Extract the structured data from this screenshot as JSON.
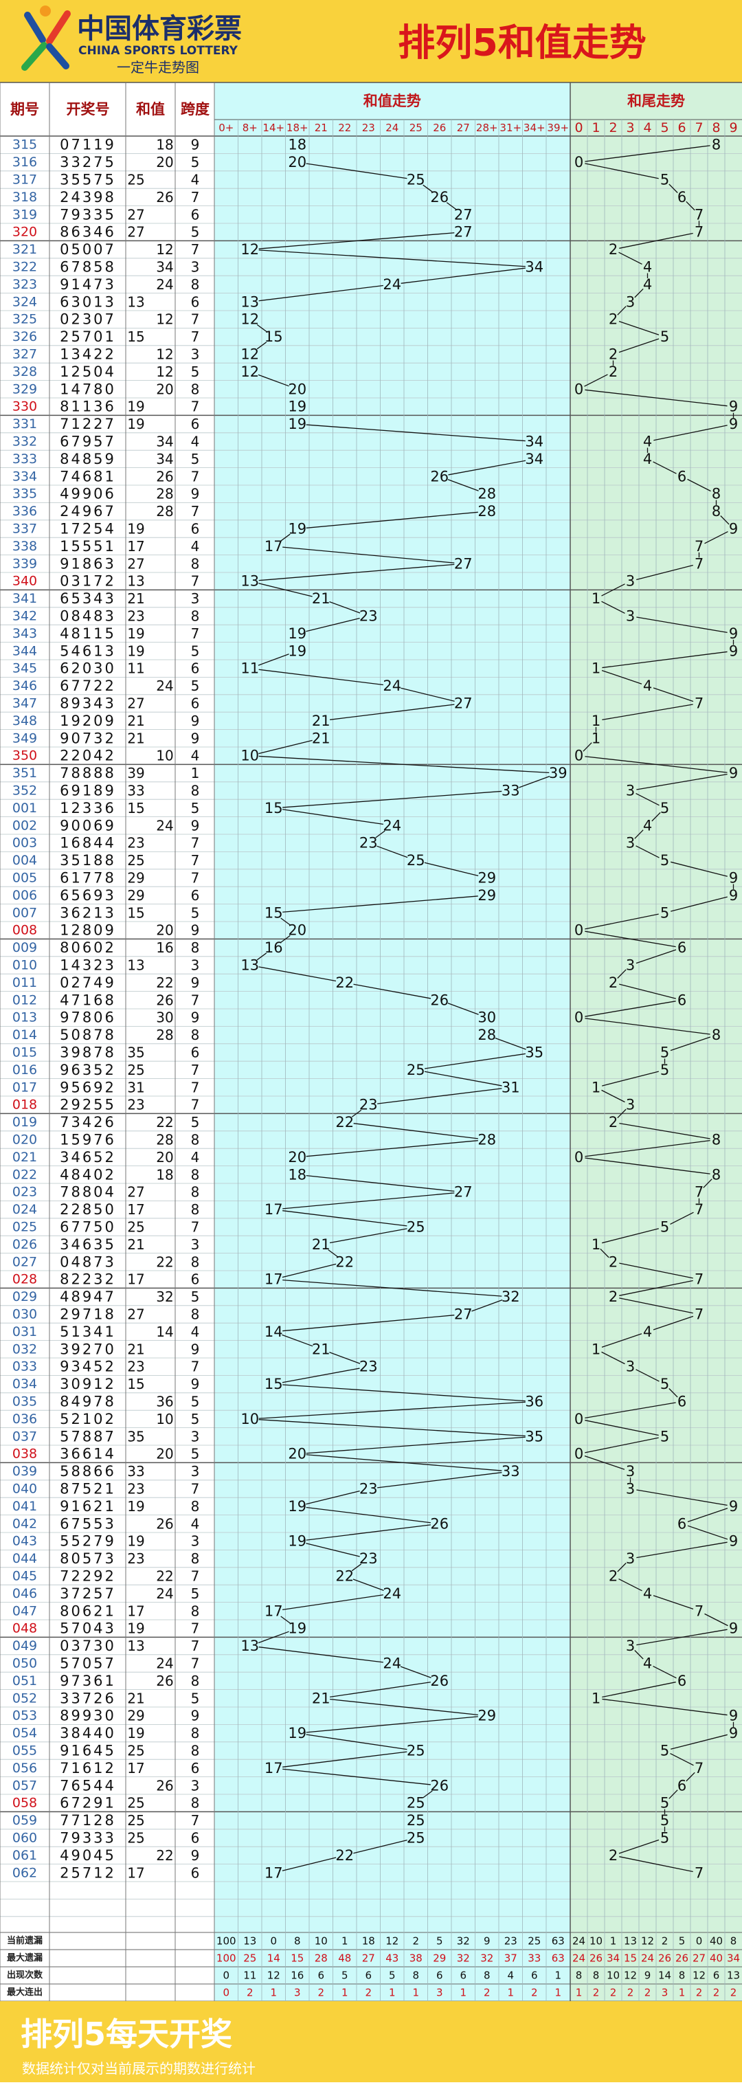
{
  "header": {
    "logo_cn": "中国体育彩票",
    "logo_en": "CHINA SPORTS LOTTERY",
    "logo_sub": "一定牛走势图",
    "title": "排列5和值走势"
  },
  "table": {
    "headers": [
      "期号",
      "开奖号",
      "和值",
      "跨度"
    ],
    "sum_title": "和值走势",
    "tail_title": "和尾走势",
    "sum_columns": [
      {
        "value": 0,
        "label": "0+"
      },
      {
        "value": 8,
        "label": "8+"
      },
      {
        "value": 14,
        "label": "14+"
      },
      {
        "value": 18,
        "label": "18+"
      },
      21,
      22,
      23,
      24,
      25,
      26,
      27,
      {
        "value": 28,
        "label": "28+"
      },
      {
        "value": 31,
        "label": "31+"
      },
      {
        "value": 34,
        "label": "34+"
      },
      {
        "value": 39,
        "label": "39+"
      }
    ],
    "tail_columns": [
      0,
      1,
      2,
      3,
      4,
      5,
      6,
      7,
      8,
      9
    ],
    "rows": [
      [
        "315",
        "07119",
        18,
        9,
        8
      ],
      [
        "316",
        "33275",
        20,
        5,
        0
      ],
      [
        "317",
        "35575",
        25,
        4,
        5
      ],
      [
        "318",
        "24398",
        26,
        7,
        6
      ],
      [
        "319",
        "79335",
        27,
        6,
        7
      ],
      [
        "320",
        "86346",
        27,
        5,
        7
      ],
      [
        "321",
        "05007",
        12,
        7,
        2
      ],
      [
        "322",
        "67858",
        34,
        3,
        4
      ],
      [
        "323",
        "91473",
        24,
        8,
        4
      ],
      [
        "324",
        "63013",
        13,
        6,
        3
      ],
      [
        "325",
        "02307",
        12,
        7,
        2
      ],
      [
        "326",
        "25701",
        15,
        7,
        5
      ],
      [
        "327",
        "13422",
        12,
        3,
        2
      ],
      [
        "328",
        "12504",
        12,
        5,
        2
      ],
      [
        "329",
        "14780",
        20,
        8,
        0
      ],
      [
        "330",
        "81136",
        19,
        7,
        9
      ],
      [
        "331",
        "71227",
        19,
        6,
        9
      ],
      [
        "332",
        "67957",
        34,
        4,
        4
      ],
      [
        "333",
        "84859",
        34,
        5,
        4
      ],
      [
        "334",
        "74681",
        26,
        7,
        6
      ],
      [
        "335",
        "49906",
        28,
        9,
        8
      ],
      [
        "336",
        "24967",
        28,
        7,
        8
      ],
      [
        "337",
        "17254",
        19,
        6,
        9
      ],
      [
        "338",
        "15551",
        17,
        4,
        7
      ],
      [
        "339",
        "91863",
        27,
        8,
        7
      ],
      [
        "340",
        "03172",
        13,
        7,
        3
      ],
      [
        "341",
        "65343",
        21,
        3,
        1
      ],
      [
        "342",
        "08483",
        23,
        8,
        3
      ],
      [
        "343",
        "48115",
        19,
        7,
        9
      ],
      [
        "344",
        "54613",
        19,
        5,
        9
      ],
      [
        "345",
        "62030",
        11,
        6,
        1
      ],
      [
        "346",
        "67722",
        24,
        5,
        4
      ],
      [
        "347",
        "89343",
        27,
        6,
        7
      ],
      [
        "348",
        "19209",
        21,
        9,
        1
      ],
      [
        "349",
        "90732",
        21,
        9,
        1
      ],
      [
        "350",
        "22042",
        10,
        4,
        0
      ],
      [
        "351",
        "78888",
        39,
        1,
        9
      ],
      [
        "352",
        "69189",
        33,
        8,
        3
      ],
      [
        "001",
        "12336",
        15,
        5,
        5
      ],
      [
        "002",
        "90069",
        24,
        9,
        4
      ],
      [
        "003",
        "16844",
        23,
        7,
        3
      ],
      [
        "004",
        "35188",
        25,
        7,
        5
      ],
      [
        "005",
        "61778",
        29,
        7,
        9
      ],
      [
        "006",
        "65693",
        29,
        6,
        9
      ],
      [
        "007",
        "36213",
        15,
        5,
        5
      ],
      [
        "008",
        "12809",
        20,
        9,
        0
      ],
      [
        "009",
        "80602",
        16,
        8,
        6
      ],
      [
        "010",
        "14323",
        13,
        3,
        3
      ],
      [
        "011",
        "02749",
        22,
        9,
        2
      ],
      [
        "012",
        "47168",
        26,
        7,
        6
      ],
      [
        "013",
        "97806",
        30,
        9,
        0
      ],
      [
        "014",
        "50878",
        28,
        8,
        8
      ],
      [
        "015",
        "39878",
        35,
        6,
        5
      ],
      [
        "016",
        "96352",
        25,
        7,
        5
      ],
      [
        "017",
        "95692",
        31,
        7,
        1
      ],
      [
        "018",
        "29255",
        23,
        7,
        3
      ],
      [
        "019",
        "73426",
        22,
        5,
        2
      ],
      [
        "020",
        "15976",
        28,
        8,
        8
      ],
      [
        "021",
        "34652",
        20,
        4,
        0
      ],
      [
        "022",
        "48402",
        18,
        8,
        8
      ],
      [
        "023",
        "78804",
        27,
        8,
        7
      ],
      [
        "024",
        "22850",
        17,
        8,
        7
      ],
      [
        "025",
        "67750",
        25,
        7,
        5
      ],
      [
        "026",
        "34635",
        21,
        3,
        1
      ],
      [
        "027",
        "04873",
        22,
        8,
        2
      ],
      [
        "028",
        "82232",
        17,
        6,
        7
      ],
      [
        "029",
        "48947",
        32,
        5,
        2
      ],
      [
        "030",
        "29718",
        27,
        8,
        7
      ],
      [
        "031",
        "51341",
        14,
        4,
        4
      ],
      [
        "032",
        "39270",
        21,
        9,
        1
      ],
      [
        "033",
        "93452",
        23,
        7,
        3
      ],
      [
        "034",
        "30912",
        15,
        9,
        5
      ],
      [
        "035",
        "84978",
        36,
        5,
        6
      ],
      [
        "036",
        "52102",
        10,
        5,
        0
      ],
      [
        "037",
        "57887",
        35,
        3,
        5
      ],
      [
        "038",
        "36614",
        20,
        5,
        0
      ],
      [
        "039",
        "58866",
        33,
        3,
        3
      ],
      [
        "040",
        "87521",
        23,
        7,
        3
      ],
      [
        "041",
        "91621",
        19,
        8,
        9
      ],
      [
        "042",
        "67553",
        26,
        4,
        6
      ],
      [
        "043",
        "55279",
        19,
        3,
        9
      ],
      [
        "044",
        "80573",
        23,
        8,
        3
      ],
      [
        "045",
        "72292",
        22,
        7,
        2
      ],
      [
        "046",
        "37257",
        24,
        5,
        4
      ],
      [
        "047",
        "80621",
        17,
        8,
        7
      ],
      [
        "048",
        "57043",
        19,
        7,
        9
      ],
      [
        "049",
        "03730",
        13,
        7,
        3
      ],
      [
        "050",
        "57057",
        24,
        7,
        4
      ],
      [
        "051",
        "97361",
        26,
        8,
        6
      ],
      [
        "052",
        "33726",
        21,
        5,
        1
      ],
      [
        "053",
        "89930",
        29,
        9,
        9
      ],
      [
        "054",
        "38440",
        19,
        8,
        9
      ],
      [
        "055",
        "91645",
        25,
        8,
        5
      ],
      [
        "056",
        "71612",
        17,
        6,
        7
      ],
      [
        "057",
        "76544",
        26,
        3,
        6
      ],
      [
        "058",
        "67291",
        25,
        8,
        5
      ],
      [
        "059",
        "77128",
        25,
        7,
        5
      ],
      [
        "060",
        "79333",
        25,
        6,
        5
      ],
      [
        "061",
        "49045",
        22,
        9,
        2
      ],
      [
        "062",
        "25712",
        17,
        6,
        7
      ]
    ]
  },
  "stats": {
    "rows": [
      {
        "label": "当前遗漏",
        "values": [
          100,
          13,
          0,
          8,
          10,
          1,
          18,
          12,
          2,
          5,
          32,
          9,
          23,
          25,
          63,
          24,
          10,
          1,
          13,
          12,
          2,
          5,
          0,
          40,
          8
        ]
      },
      {
        "label": "最大遗漏",
        "values": [
          100,
          25,
          14,
          15,
          28,
          48,
          27,
          43,
          38,
          29,
          32,
          32,
          37,
          33,
          63,
          24,
          26,
          34,
          15,
          24,
          26,
          26,
          27,
          40,
          34
        ]
      },
      {
        "label": "出现次数",
        "values": [
          0,
          11,
          12,
          16,
          6,
          5,
          6,
          5,
          8,
          6,
          6,
          8,
          4,
          6,
          1,
          8,
          8,
          10,
          12,
          9,
          14,
          8,
          12,
          6,
          13
        ]
      },
      {
        "label": "最大连出",
        "values": [
          0,
          2,
          1,
          3,
          2,
          1,
          2,
          1,
          1,
          3,
          1,
          2,
          1,
          2,
          1,
          1,
          2,
          2,
          2,
          2,
          3,
          1,
          2,
          2,
          2
        ]
      }
    ]
  },
  "footer": {
    "title": "排列5每天开奖",
    "note": "数据统计仅对当前展示的期数进行统计"
  }
}
